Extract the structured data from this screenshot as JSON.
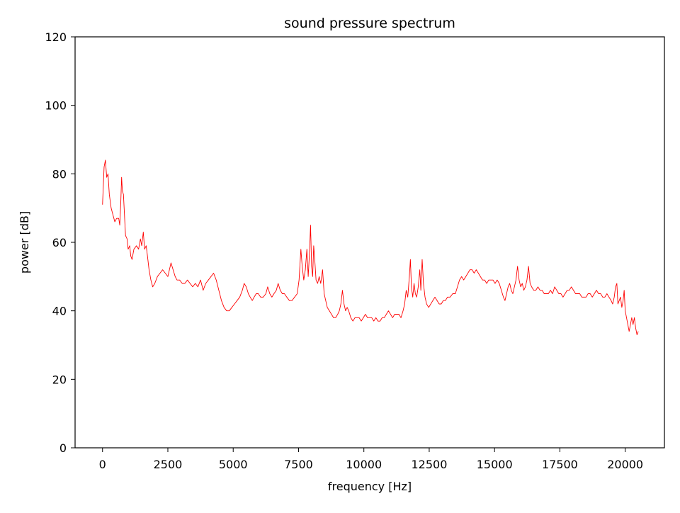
{
  "chart_data": {
    "type": "line",
    "title": "sound pressure spectrum",
    "xlabel": "frequency [Hz]",
    "ylabel": "power [dB]",
    "xlim": [
      -1050,
      21500
    ],
    "ylim": [
      0,
      120
    ],
    "xticks": [
      0,
      2500,
      5000,
      7500,
      10000,
      12500,
      15000,
      17500,
      20000
    ],
    "yticks": [
      0,
      20,
      40,
      60,
      80,
      100,
      120
    ],
    "grid": false,
    "legend": "none",
    "series": [
      {
        "color": "#ff0000",
        "points": [
          [
            0,
            71
          ],
          [
            60,
            82
          ],
          [
            110,
            84
          ],
          [
            160,
            79
          ],
          [
            210,
            80
          ],
          [
            260,
            74
          ],
          [
            330,
            70
          ],
          [
            400,
            68
          ],
          [
            470,
            66
          ],
          [
            540,
            67
          ],
          [
            620,
            67
          ],
          [
            660,
            65
          ],
          [
            700,
            72
          ],
          [
            730,
            79
          ],
          [
            760,
            75
          ],
          [
            800,
            74
          ],
          [
            840,
            68
          ],
          [
            880,
            62
          ],
          [
            940,
            61
          ],
          [
            980,
            58
          ],
          [
            1040,
            59
          ],
          [
            1080,
            56
          ],
          [
            1130,
            55
          ],
          [
            1200,
            58
          ],
          [
            1300,
            59
          ],
          [
            1380,
            58
          ],
          [
            1450,
            61
          ],
          [
            1500,
            59
          ],
          [
            1560,
            63
          ],
          [
            1610,
            58
          ],
          [
            1670,
            59
          ],
          [
            1720,
            56
          ],
          [
            1780,
            52
          ],
          [
            1850,
            49
          ],
          [
            1920,
            47
          ],
          [
            2000,
            48
          ],
          [
            2100,
            50
          ],
          [
            2200,
            51
          ],
          [
            2300,
            52
          ],
          [
            2400,
            51
          ],
          [
            2500,
            50
          ],
          [
            2560,
            52
          ],
          [
            2620,
            54
          ],
          [
            2700,
            52
          ],
          [
            2780,
            50
          ],
          [
            2850,
            49
          ],
          [
            2950,
            49
          ],
          [
            3050,
            48
          ],
          [
            3150,
            48
          ],
          [
            3250,
            49
          ],
          [
            3350,
            48
          ],
          [
            3450,
            47
          ],
          [
            3550,
            48
          ],
          [
            3650,
            47
          ],
          [
            3750,
            49
          ],
          [
            3850,
            46
          ],
          [
            3950,
            48
          ],
          [
            4050,
            49
          ],
          [
            4150,
            50
          ],
          [
            4250,
            51
          ],
          [
            4350,
            49
          ],
          [
            4450,
            46
          ],
          [
            4550,
            43
          ],
          [
            4650,
            41
          ],
          [
            4750,
            40
          ],
          [
            4850,
            40
          ],
          [
            4950,
            41
          ],
          [
            5050,
            42
          ],
          [
            5150,
            43
          ],
          [
            5250,
            44
          ],
          [
            5350,
            46
          ],
          [
            5420,
            48
          ],
          [
            5500,
            47
          ],
          [
            5580,
            45
          ],
          [
            5650,
            44
          ],
          [
            5730,
            43
          ],
          [
            5800,
            44
          ],
          [
            5880,
            45
          ],
          [
            5960,
            45
          ],
          [
            6050,
            44
          ],
          [
            6150,
            44
          ],
          [
            6250,
            45
          ],
          [
            6320,
            47
          ],
          [
            6400,
            45
          ],
          [
            6480,
            44
          ],
          [
            6560,
            45
          ],
          [
            6650,
            46
          ],
          [
            6720,
            48
          ],
          [
            6800,
            46
          ],
          [
            6880,
            45
          ],
          [
            6960,
            45
          ],
          [
            7050,
            44
          ],
          [
            7150,
            43
          ],
          [
            7250,
            43
          ],
          [
            7350,
            44
          ],
          [
            7450,
            45
          ],
          [
            7520,
            49
          ],
          [
            7590,
            58
          ],
          [
            7640,
            53
          ],
          [
            7700,
            49
          ],
          [
            7760,
            52
          ],
          [
            7820,
            58
          ],
          [
            7870,
            50
          ],
          [
            7920,
            57
          ],
          [
            7960,
            65
          ],
          [
            8000,
            53
          ],
          [
            8040,
            50
          ],
          [
            8080,
            59
          ],
          [
            8120,
            55
          ],
          [
            8170,
            49
          ],
          [
            8230,
            48
          ],
          [
            8290,
            50
          ],
          [
            8350,
            48
          ],
          [
            8420,
            52
          ],
          [
            8480,
            45
          ],
          [
            8540,
            43
          ],
          [
            8600,
            41
          ],
          [
            8680,
            40
          ],
          [
            8760,
            39
          ],
          [
            8840,
            38
          ],
          [
            8920,
            38
          ],
          [
            9000,
            39
          ],
          [
            9060,
            40
          ],
          [
            9120,
            42
          ],
          [
            9180,
            46
          ],
          [
            9240,
            42
          ],
          [
            9300,
            40
          ],
          [
            9360,
            41
          ],
          [
            9420,
            40
          ],
          [
            9500,
            38
          ],
          [
            9580,
            37
          ],
          [
            9660,
            38
          ],
          [
            9740,
            38
          ],
          [
            9820,
            38
          ],
          [
            9900,
            37
          ],
          [
            9980,
            38
          ],
          [
            10060,
            39
          ],
          [
            10140,
            38
          ],
          [
            10220,
            38
          ],
          [
            10300,
            38
          ],
          [
            10380,
            37
          ],
          [
            10460,
            38
          ],
          [
            10540,
            37
          ],
          [
            10620,
            37
          ],
          [
            10700,
            38
          ],
          [
            10780,
            38
          ],
          [
            10860,
            39
          ],
          [
            10940,
            40
          ],
          [
            11020,
            39
          ],
          [
            11100,
            38
          ],
          [
            11180,
            39
          ],
          [
            11260,
            39
          ],
          [
            11340,
            39
          ],
          [
            11420,
            38
          ],
          [
            11500,
            40
          ],
          [
            11560,
            42
          ],
          [
            11620,
            46
          ],
          [
            11680,
            44
          ],
          [
            11740,
            50
          ],
          [
            11780,
            55
          ],
          [
            11820,
            47
          ],
          [
            11870,
            44
          ],
          [
            11920,
            48
          ],
          [
            11970,
            45
          ],
          [
            12020,
            44
          ],
          [
            12080,
            47
          ],
          [
            12140,
            52
          ],
          [
            12180,
            46
          ],
          [
            12230,
            55
          ],
          [
            12280,
            48
          ],
          [
            12340,
            44
          ],
          [
            12400,
            42
          ],
          [
            12480,
            41
          ],
          [
            12560,
            42
          ],
          [
            12640,
            43
          ],
          [
            12720,
            44
          ],
          [
            12800,
            43
          ],
          [
            12880,
            42
          ],
          [
            12960,
            42
          ],
          [
            13040,
            43
          ],
          [
            13120,
            43
          ],
          [
            13200,
            44
          ],
          [
            13300,
            44
          ],
          [
            13400,
            45
          ],
          [
            13500,
            45
          ],
          [
            13580,
            47
          ],
          [
            13660,
            49
          ],
          [
            13740,
            50
          ],
          [
            13820,
            49
          ],
          [
            13900,
            50
          ],
          [
            13980,
            51
          ],
          [
            14060,
            52
          ],
          [
            14140,
            52
          ],
          [
            14220,
            51
          ],
          [
            14300,
            52
          ],
          [
            14380,
            51
          ],
          [
            14460,
            50
          ],
          [
            14540,
            49
          ],
          [
            14620,
            49
          ],
          [
            14700,
            48
          ],
          [
            14780,
            49
          ],
          [
            14860,
            49
          ],
          [
            14940,
            49
          ],
          [
            15020,
            48
          ],
          [
            15100,
            49
          ],
          [
            15180,
            48
          ],
          [
            15260,
            46
          ],
          [
            15340,
            44
          ],
          [
            15400,
            43
          ],
          [
            15460,
            45
          ],
          [
            15520,
            47
          ],
          [
            15580,
            48
          ],
          [
            15640,
            46
          ],
          [
            15700,
            45
          ],
          [
            15760,
            47
          ],
          [
            15820,
            49
          ],
          [
            15880,
            53
          ],
          [
            15940,
            49
          ],
          [
            16000,
            47
          ],
          [
            16060,
            48
          ],
          [
            16120,
            46
          ],
          [
            16180,
            47
          ],
          [
            16240,
            49
          ],
          [
            16300,
            53
          ],
          [
            16360,
            48
          ],
          [
            16420,
            47
          ],
          [
            16500,
            46
          ],
          [
            16580,
            46
          ],
          [
            16660,
            47
          ],
          [
            16740,
            46
          ],
          [
            16820,
            46
          ],
          [
            16900,
            45
          ],
          [
            16980,
            45
          ],
          [
            17060,
            45
          ],
          [
            17140,
            46
          ],
          [
            17220,
            45
          ],
          [
            17300,
            47
          ],
          [
            17380,
            46
          ],
          [
            17460,
            45
          ],
          [
            17540,
            45
          ],
          [
            17620,
            44
          ],
          [
            17700,
            45
          ],
          [
            17780,
            46
          ],
          [
            17860,
            46
          ],
          [
            17940,
            47
          ],
          [
            18020,
            46
          ],
          [
            18100,
            45
          ],
          [
            18180,
            45
          ],
          [
            18260,
            45
          ],
          [
            18340,
            44
          ],
          [
            18420,
            44
          ],
          [
            18500,
            44
          ],
          [
            18580,
            45
          ],
          [
            18660,
            45
          ],
          [
            18740,
            44
          ],
          [
            18820,
            45
          ],
          [
            18900,
            46
          ],
          [
            18980,
            45
          ],
          [
            19060,
            45
          ],
          [
            19140,
            44
          ],
          [
            19220,
            44
          ],
          [
            19300,
            45
          ],
          [
            19380,
            44
          ],
          [
            19460,
            43
          ],
          [
            19520,
            42
          ],
          [
            19580,
            44
          ],
          [
            19630,
            47
          ],
          [
            19680,
            48
          ],
          [
            19720,
            42
          ],
          [
            19770,
            43
          ],
          [
            19820,
            44
          ],
          [
            19870,
            41
          ],
          [
            19920,
            43
          ],
          [
            19960,
            46
          ],
          [
            20000,
            40
          ],
          [
            20050,
            38
          ],
          [
            20100,
            36
          ],
          [
            20150,
            34
          ],
          [
            20200,
            36
          ],
          [
            20250,
            38
          ],
          [
            20300,
            36
          ],
          [
            20350,
            38
          ],
          [
            20400,
            35
          ],
          [
            20450,
            33
          ],
          [
            20500,
            34
          ]
        ]
      }
    ]
  }
}
